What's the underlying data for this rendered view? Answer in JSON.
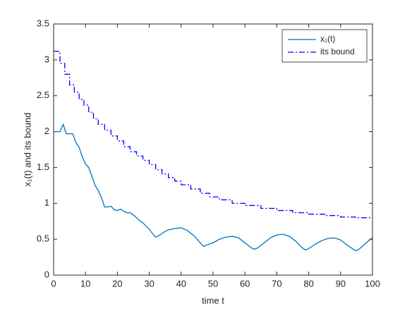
{
  "chart_data": {
    "type": "line",
    "xlabel": "time t",
    "ylabel": "x₁(t) and its bound",
    "xlim": [
      0,
      100
    ],
    "xticks": [
      0,
      10,
      20,
      30,
      40,
      50,
      60,
      70,
      80,
      90,
      100
    ],
    "ylim": [
      0,
      3.5
    ],
    "yticks": [
      0,
      0.5,
      1,
      1.5,
      2,
      2.5,
      3,
      3.5
    ],
    "legend": "upper right",
    "series": [
      {
        "name": "x₁(t)",
        "color": "#0072bd",
        "linestyle": "solid",
        "drawstyle": "default",
        "x": [
          0,
          2,
          3,
          4,
          5,
          6,
          7,
          8,
          9,
          10,
          11,
          12,
          13,
          14,
          15,
          16,
          17,
          18,
          19,
          20,
          21,
          22,
          23,
          24,
          25,
          26,
          27,
          28,
          29,
          30,
          31,
          32,
          33,
          34,
          35,
          36,
          38,
          40,
          42,
          44,
          46,
          47,
          48,
          50,
          52,
          54,
          56,
          58,
          60,
          62,
          63,
          64,
          66,
          68,
          70,
          72,
          74,
          76,
          78,
          79,
          80,
          82,
          84,
          86,
          88,
          90,
          92,
          94,
          95,
          96,
          98,
          100
        ],
        "values": [
          2.0,
          2.0,
          2.1,
          1.97,
          1.97,
          1.97,
          1.85,
          1.78,
          1.65,
          1.55,
          1.5,
          1.38,
          1.25,
          1.18,
          1.08,
          0.95,
          0.95,
          0.96,
          0.91,
          0.9,
          0.92,
          0.89,
          0.87,
          0.87,
          0.84,
          0.8,
          0.76,
          0.73,
          0.68,
          0.64,
          0.58,
          0.53,
          0.55,
          0.58,
          0.61,
          0.63,
          0.65,
          0.66,
          0.62,
          0.55,
          0.45,
          0.4,
          0.42,
          0.45,
          0.5,
          0.53,
          0.54,
          0.52,
          0.45,
          0.38,
          0.36,
          0.38,
          0.45,
          0.52,
          0.56,
          0.57,
          0.54,
          0.47,
          0.38,
          0.35,
          0.37,
          0.43,
          0.48,
          0.51,
          0.52,
          0.49,
          0.42,
          0.36,
          0.34,
          0.37,
          0.45,
          0.52
        ]
      },
      {
        "name": "its bound",
        "color": "#0000ff",
        "linestyle": "dashdot",
        "drawstyle": "steps",
        "x": [
          0,
          2,
          3.5,
          5,
          6.5,
          8,
          9.5,
          11,
          12.5,
          14,
          16,
          18,
          20,
          22,
          24,
          26,
          28,
          30,
          32,
          34,
          36,
          38,
          40,
          43,
          46,
          49,
          52,
          56,
          60,
          65,
          70,
          75,
          80,
          85,
          90,
          95,
          100
        ],
        "values": [
          3.12,
          2.95,
          2.8,
          2.65,
          2.55,
          2.45,
          2.37,
          2.27,
          2.18,
          2.1,
          2.02,
          1.94,
          1.87,
          1.79,
          1.72,
          1.66,
          1.6,
          1.54,
          1.47,
          1.41,
          1.36,
          1.31,
          1.26,
          1.2,
          1.14,
          1.09,
          1.05,
          1.0,
          0.97,
          0.93,
          0.9,
          0.87,
          0.85,
          0.83,
          0.81,
          0.8,
          0.79
        ]
      }
    ]
  }
}
